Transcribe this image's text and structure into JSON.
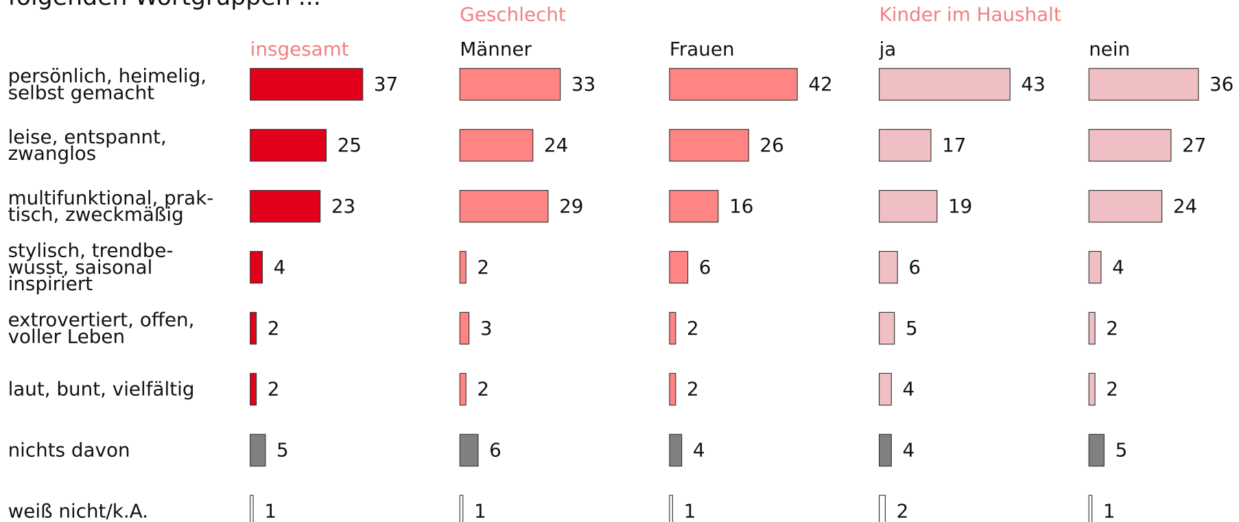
{
  "chart_data": {
    "type": "bar",
    "title": "folgenden Wortgruppen ...",
    "categories": [
      [
        "persönlich, heimelig,",
        "selbst gemacht"
      ],
      [
        "leise, entspannt,",
        "zwanglos"
      ],
      [
        "multifunktional, prak-",
        "tisch, zweckmäßig"
      ],
      [
        "stylisch, trendbe-",
        "wusst, saisonal",
        "inspiriert"
      ],
      [
        "extrovertiert, offen,",
        "voller Leben"
      ],
      [
        "laut, bunt, vielfältig"
      ],
      [
        "nichts davon"
      ],
      [
        "weiß nicht/k.A."
      ]
    ],
    "groups": [
      {
        "name": "Geschlecht",
        "color": "#f08080",
        "series": [
          1,
          2
        ]
      },
      {
        "name": "Kinder im Haushalt",
        "color": "#f08080",
        "series": [
          3,
          4
        ]
      }
    ],
    "series": [
      {
        "name": "insgesamt",
        "label_color": "#f08080",
        "colors": [
          "#e2001a",
          "#e2001a",
          "#e2001a",
          "#e2001a",
          "#e2001a",
          "#e2001a",
          "#808080",
          "#ffffff"
        ],
        "values": [
          37,
          25,
          23,
          4,
          2,
          2,
          5,
          1
        ]
      },
      {
        "name": "Männer",
        "label_color": "#111111",
        "colors": [
          "#ff8585",
          "#ff8585",
          "#ff8585",
          "#ff8585",
          "#ff8585",
          "#ff8585",
          "#808080",
          "#ffffff"
        ],
        "values": [
          33,
          24,
          29,
          2,
          3,
          2,
          6,
          1
        ]
      },
      {
        "name": "Frauen",
        "label_color": "#111111",
        "colors": [
          "#ff8585",
          "#ff8585",
          "#ff8585",
          "#ff8585",
          "#ff8585",
          "#ff8585",
          "#808080",
          "#ffffff"
        ],
        "values": [
          42,
          26,
          16,
          6,
          2,
          2,
          4,
          1
        ]
      },
      {
        "name": "ja",
        "label_color": "#111111",
        "colors": [
          "#f0bfc3",
          "#f0bfc3",
          "#f0bfc3",
          "#f0bfc3",
          "#f0bfc3",
          "#f0bfc3",
          "#808080",
          "#ffffff"
        ],
        "values": [
          43,
          17,
          19,
          6,
          5,
          4,
          4,
          2
        ]
      },
      {
        "name": "nein",
        "label_color": "#111111",
        "colors": [
          "#f0bfc3",
          "#f0bfc3",
          "#f0bfc3",
          "#f0bfc3",
          "#f0bfc3",
          "#f0bfc3",
          "#808080",
          "#ffffff"
        ],
        "values": [
          36,
          27,
          24,
          4,
          2,
          2,
          5,
          1
        ]
      }
    ]
  }
}
